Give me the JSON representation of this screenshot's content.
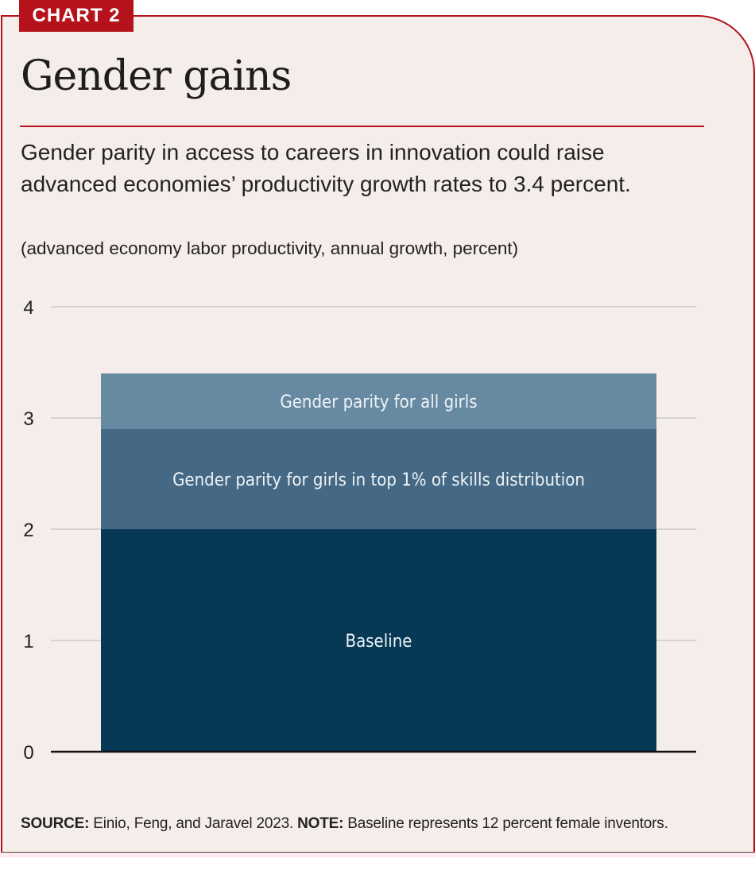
{
  "badge": "CHART 2",
  "title": "Gender gains",
  "subtitle": "Gender parity in access to careers in innovation could raise advanced economies’ productivity growth rates to 3.4 percent.",
  "units": "(advanced economy labor productivity, annual growth, percent)",
  "footer": {
    "source_label": "SOURCE:",
    "source_text": " Einio, Feng, and Jaravel 2023.  ",
    "note_label": "NOTE:",
    "note_text": " Baseline represents 12 percent female inventors."
  },
  "colors": {
    "accent": "#b5121b",
    "baseline": "#073856",
    "top1": "#456985",
    "all_girls": "#6789a2"
  },
  "chart_data": {
    "type": "bar",
    "stacked": true,
    "title": "Gender gains",
    "xlabel": "",
    "ylabel": "advanced economy labor productivity, annual growth, percent",
    "ylim": [
      0,
      4
    ],
    "yticks": [
      "0",
      "1",
      "2",
      "3",
      "4"
    ],
    "grid": true,
    "legend": "inline labels inside bar segments",
    "categories": [
      ""
    ],
    "series": [
      {
        "name": "Baseline",
        "values": [
          2.0
        ],
        "cumulative_top": 2.0,
        "color": "#073856"
      },
      {
        "name": "Gender parity for girls in top 1% of skills distribution",
        "values": [
          0.9
        ],
        "cumulative_top": 2.9,
        "color": "#456985"
      },
      {
        "name": "Gender parity for all girls",
        "values": [
          0.5
        ],
        "cumulative_top": 3.4,
        "color": "#6789a2"
      }
    ]
  }
}
